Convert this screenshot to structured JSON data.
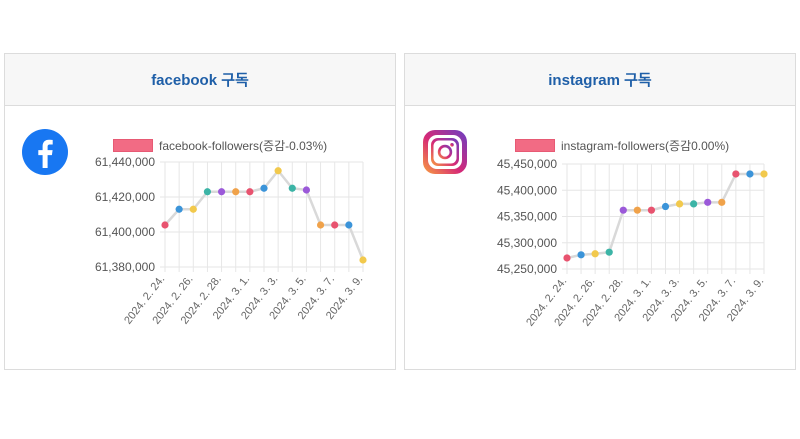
{
  "facebook": {
    "title": "facebook 구독",
    "logo_icon": "facebook-logo-icon",
    "chart_data": {
      "type": "line",
      "series": [
        {
          "name": "facebook-followers(증감-0.03%)",
          "values": [
            61404000,
            61413000,
            61413000,
            61423000,
            61423000,
            61423000,
            61423000,
            61425000,
            61435000,
            61425000,
            61424000,
            61404000,
            61404000,
            61404000,
            61384000
          ]
        }
      ],
      "x": [
        "2024. 2. 24.",
        "2024. 2. 25.",
        "2024. 2. 26.",
        "2024. 2. 27.",
        "2024. 2. 28.",
        "2024. 2. 29.",
        "2024. 3. 1.",
        "2024. 3. 2.",
        "2024. 3. 3.",
        "2024. 3. 4.",
        "2024. 3. 5.",
        "2024. 3. 6.",
        "2024. 3. 7.",
        "2024. 3. 8.",
        "2024. 3. 9."
      ],
      "x_tick_labels": [
        "2024. 2. 24.",
        "2024. 2. 26.",
        "2024. 2. 28.",
        "2024. 3. 1.",
        "2024. 3. 3.",
        "2024. 3. 5.",
        "2024. 3. 7.",
        "2024. 3. 9."
      ],
      "y_ticks": [
        "61,440,000",
        "61,420,000",
        "61,400,000",
        "61,380,000"
      ],
      "ylim": [
        61380000,
        61440000
      ],
      "legend_color": "#f26b84",
      "line_color": "#d9d9d9",
      "point_colors": [
        "#e8536f",
        "#3b94d9",
        "#f2c94c",
        "#3cb4a6",
        "#9b59d9",
        "#f0a24a",
        "#e8536f",
        "#3b94d9",
        "#f2c94c",
        "#3cb4a6",
        "#9b59d9",
        "#f0a24a",
        "#e8536f",
        "#3b94d9",
        "#f2c94c"
      ],
      "grid": true,
      "legend_position": "top"
    }
  },
  "instagram": {
    "title": "instagram 구독",
    "logo_icon": "instagram-logo-icon",
    "chart_data": {
      "type": "line",
      "series": [
        {
          "name": "instagram-followers(증감0.00%)",
          "values": [
            45271000,
            45277000,
            45279000,
            45282000,
            45362000,
            45362000,
            45362000,
            45369000,
            45374000,
            45374000,
            45377000,
            45377000,
            45431000,
            45431000,
            45431000
          ]
        }
      ],
      "x": [
        "2024. 2. 24.",
        "2024. 2. 25.",
        "2024. 2. 26.",
        "2024. 2. 27.",
        "2024. 2. 28.",
        "2024. 2. 29.",
        "2024. 3. 1.",
        "2024. 3. 2.",
        "2024. 3. 3.",
        "2024. 3. 4.",
        "2024. 3. 5.",
        "2024. 3. 6.",
        "2024. 3. 7.",
        "2024. 3. 8.",
        "2024. 3. 9."
      ],
      "x_tick_labels": [
        "2024. 2. 24.",
        "2024. 2. 26.",
        "2024. 2. 28.",
        "2024. 3. 1.",
        "2024. 3. 3.",
        "2024. 3. 5.",
        "2024. 3. 7.",
        "2024. 3. 9."
      ],
      "y_ticks": [
        "45,450,000",
        "45,400,000",
        "45,350,000",
        "45,300,000",
        "45,250,000"
      ],
      "ylim": [
        45250000,
        45450000
      ],
      "legend_color": "#f26b84",
      "line_color": "#d9d9d9",
      "point_colors": [
        "#e8536f",
        "#3b94d9",
        "#f2c94c",
        "#3cb4a6",
        "#9b59d9",
        "#f0a24a",
        "#e8536f",
        "#3b94d9",
        "#f2c94c",
        "#3cb4a6",
        "#9b59d9",
        "#f0a24a",
        "#e8536f",
        "#3b94d9",
        "#f2c94c"
      ],
      "grid": true,
      "legend_position": "top"
    }
  }
}
